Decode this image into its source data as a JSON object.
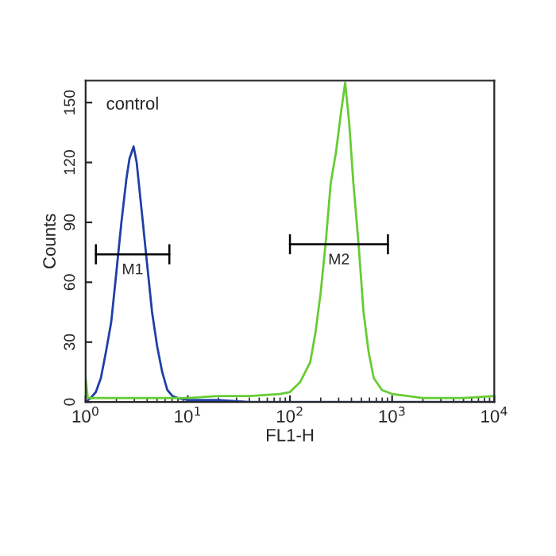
{
  "chart_data": {
    "type": "line",
    "xlabel": "FL1-H",
    "ylabel": "Counts",
    "log": "x",
    "grid": false,
    "legend": false,
    "marker": "none",
    "line_style": "solid",
    "xlim": [
      1,
      10000
    ],
    "xticks": [
      {
        "value": 1,
        "label": "10$^{0}$"
      },
      {
        "value": 10,
        "label": "10$^{1}$"
      },
      {
        "value": 100,
        "label": "10$^{2}$"
      },
      {
        "value": 1000,
        "label": "10$^{3}$"
      },
      {
        "value": 10000,
        "label": "10$^{4}$"
      }
    ],
    "ylim": [
      0,
      161
    ],
    "yticks": [
      0,
      30,
      60,
      90,
      120,
      150
    ],
    "annotations": [
      "control"
    ],
    "series": [
      {
        "name": "M1",
        "color": "#000000",
        "x": [
          1.26,
          6.6
        ],
        "values": [
          74,
          74
        ],
        "errors": [
          5,
          5
        ]
      },
      {
        "name": "M2",
        "color": "#000000",
        "x": [
          100,
          910
        ],
        "values": [
          79,
          79
        ],
        "errors": [
          5,
          5
        ]
      },
      {
        "color": "#1f3fa8",
        "x": [
          1,
          1.12,
          1.26,
          1.41,
          1.58,
          1.78,
          2.0,
          2.24,
          2.51,
          2.69,
          2.95,
          3.16,
          3.55,
          3.98,
          4.47,
          5.01,
          5.62,
          6.31,
          7.08,
          7.94,
          10,
          20,
          40,
          100,
          10000
        ],
        "values": [
          0,
          2,
          5,
          12,
          25,
          40,
          65,
          90,
          112,
          122,
          128,
          120,
          95,
          70,
          45,
          28,
          15,
          6,
          3,
          2,
          1,
          1,
          0,
          0,
          0
        ]
      },
      {
        "color": "#66cc33",
        "x": [
          1,
          1.05,
          2,
          4,
          10,
          20,
          40,
          79,
          100,
          126,
          158,
          178,
          200,
          224,
          251,
          282,
          316,
          347,
          380,
          417,
          468,
          525,
          589,
          661,
          794,
          1000,
          2000,
          5000,
          10000
        ],
        "values": [
          12,
          2,
          2,
          2,
          2,
          3,
          3,
          4,
          5,
          10,
          20,
          35,
          55,
          80,
          110,
          125,
          145,
          160,
          140,
          110,
          80,
          45,
          25,
          12,
          6,
          4,
          2,
          2,
          3
        ]
      }
    ]
  }
}
